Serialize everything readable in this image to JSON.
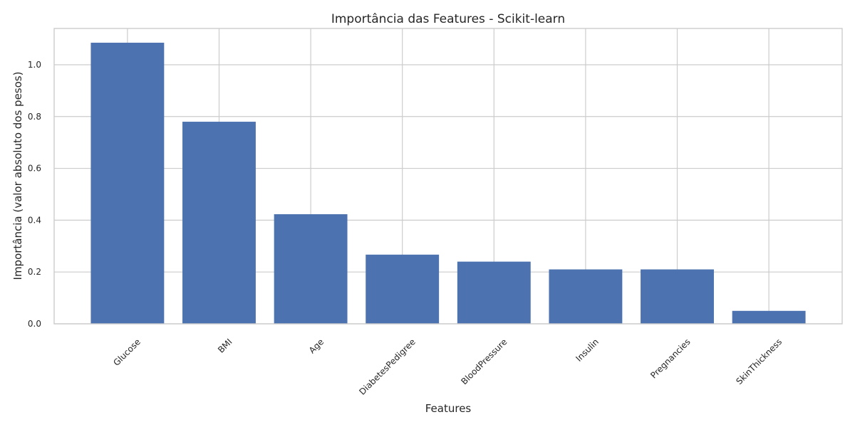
{
  "chart_data": {
    "type": "bar",
    "title": "Importância das Features - Scikit-learn",
    "xlabel": "Features",
    "ylabel": "Importância (valor absoluto dos pesos)",
    "categories": [
      "Glucose",
      "BMI",
      "Age",
      "DiabetesPedigree",
      "BloodPressure",
      "Insulin",
      "Pregnancies",
      "SkinThickness"
    ],
    "values": [
      1.085,
      0.78,
      0.423,
      0.267,
      0.24,
      0.21,
      0.21,
      0.05
    ],
    "ylim": [
      0,
      1.14
    ],
    "yticks": [
      0.0,
      0.2,
      0.4,
      0.6,
      0.8,
      1.0
    ],
    "ytick_labels": [
      "0.0",
      "0.2",
      "0.4",
      "0.6",
      "0.8",
      "1.0"
    ],
    "grid": true,
    "bar_color": "#4c72b0",
    "grid_color": "#cccccc"
  }
}
